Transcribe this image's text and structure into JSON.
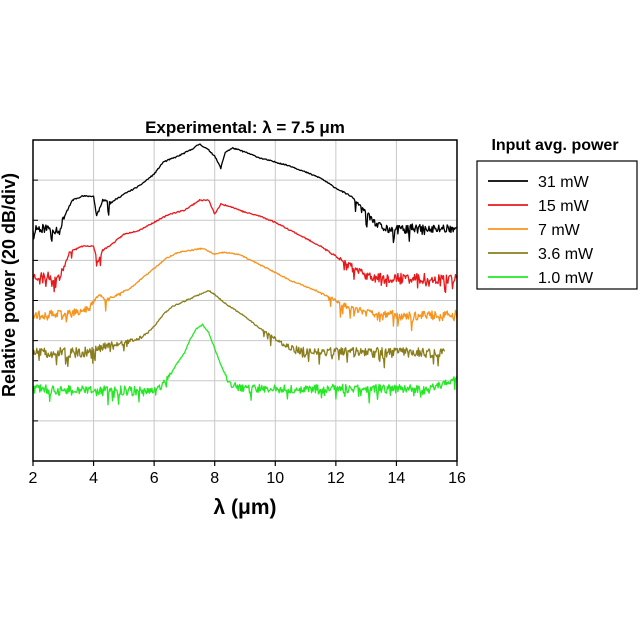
{
  "chart_data": {
    "type": "line",
    "title": "Experimental:  λ = 7.5 μm",
    "xlabel": "λ (μm)",
    "ylabel": "Relative power (20 dB/div)",
    "xlim": [
      2,
      16
    ],
    "xticks": [
      "2",
      "4",
      "6",
      "8",
      "10",
      "12",
      "14",
      "16"
    ],
    "ydivisions": 8,
    "grid": true,
    "legend": {
      "title": "Input avg. power",
      "placement": "right"
    },
    "series": [
      {
        "name": "31 mW",
        "color": "#000000",
        "x": [
          2.0,
          2.5,
          2.9,
          3.0,
          3.3,
          3.6,
          4.0,
          4.1,
          4.2,
          4.3,
          4.6,
          5.0,
          5.5,
          6.0,
          6.3,
          6.8,
          7.2,
          7.5,
          7.8,
          8.0,
          8.2,
          8.35,
          8.6,
          9.0,
          9.5,
          10.0,
          10.5,
          11.0,
          11.5,
          12.0,
          12.5,
          13.0,
          13.3,
          13.6,
          14.0,
          14.5,
          15.0,
          15.5,
          16.0
        ],
        "y": [
          -2.2,
          -2.2,
          -2.25,
          -1.95,
          -1.5,
          -1.4,
          -1.4,
          -1.9,
          -1.7,
          -1.5,
          -1.55,
          -1.35,
          -1.15,
          -0.85,
          -0.55,
          -0.4,
          -0.25,
          -0.1,
          -0.25,
          -0.4,
          -0.7,
          -0.3,
          -0.2,
          -0.3,
          -0.45,
          -0.55,
          -0.65,
          -0.8,
          -0.95,
          -1.2,
          -1.4,
          -1.8,
          -2.1,
          -2.2,
          -2.25,
          -2.2,
          -2.25,
          -2.2,
          -2.2
        ]
      },
      {
        "name": "15 mW",
        "color": "#e8181b",
        "x": [
          2.0,
          2.5,
          2.9,
          3.2,
          3.6,
          4.0,
          4.15,
          4.3,
          4.6,
          5.0,
          5.5,
          6.0,
          6.5,
          7.0,
          7.5,
          7.8,
          8.0,
          8.2,
          8.5,
          9.0,
          9.5,
          10.0,
          10.5,
          11.0,
          11.5,
          12.0,
          12.5,
          13.0,
          13.5,
          14.0,
          14.5,
          15.0,
          15.5,
          16.0
        ],
        "y": [
          -3.4,
          -3.4,
          -3.4,
          -2.8,
          -2.65,
          -2.65,
          -3.05,
          -2.75,
          -2.6,
          -2.35,
          -2.25,
          -2.05,
          -1.85,
          -1.75,
          -1.5,
          -1.5,
          -1.85,
          -1.6,
          -1.65,
          -1.8,
          -1.9,
          -2.05,
          -2.25,
          -2.45,
          -2.65,
          -2.9,
          -3.1,
          -3.4,
          -3.45,
          -3.45,
          -3.45,
          -3.45,
          -3.45,
          -3.45
        ]
      },
      {
        "name": "7 mW",
        "color": "#f7941d",
        "x": [
          2.0,
          2.5,
          3.0,
          3.5,
          3.8,
          4.2,
          4.4,
          4.8,
          5.2,
          5.6,
          6.0,
          6.4,
          6.8,
          7.2,
          7.6,
          8.0,
          8.3,
          8.8,
          9.2,
          9.6,
          10.0,
          10.5,
          11.0,
          11.5,
          12.0,
          12.5,
          13.0,
          13.5,
          14.0,
          14.5,
          15.0,
          15.5,
          16.0
        ],
        "y": [
          -4.35,
          -4.35,
          -4.35,
          -4.3,
          -4.2,
          -3.85,
          -4.0,
          -3.85,
          -3.7,
          -3.45,
          -3.2,
          -2.95,
          -2.8,
          -2.75,
          -2.7,
          -2.85,
          -2.8,
          -2.85,
          -3.0,
          -3.15,
          -3.3,
          -3.5,
          -3.65,
          -3.8,
          -4.0,
          -4.2,
          -4.3,
          -4.4,
          -4.35,
          -4.4,
          -4.35,
          -4.4,
          -4.35
        ]
      },
      {
        "name": "3.6 mW",
        "color": "#8a7d1c",
        "x": [
          2.0,
          2.5,
          3.0,
          3.5,
          4.0,
          4.5,
          5.0,
          5.5,
          5.8,
          6.1,
          6.3,
          6.6,
          6.9,
          7.2,
          7.5,
          7.8,
          8.0,
          8.3,
          8.6,
          9.0,
          9.5,
          10.0,
          10.5,
          11.0,
          11.5,
          12.0,
          12.5,
          13.0,
          13.5,
          14.0,
          14.5,
          15.0,
          15.6
        ],
        "y": [
          -5.3,
          -5.3,
          -5.3,
          -5.3,
          -5.25,
          -5.1,
          -5.05,
          -4.95,
          -4.8,
          -4.55,
          -4.35,
          -4.15,
          -4.05,
          -3.95,
          -3.85,
          -3.75,
          -3.85,
          -4.05,
          -4.2,
          -4.4,
          -4.7,
          -4.95,
          -5.2,
          -5.3,
          -5.3,
          -5.3,
          -5.3,
          -5.3,
          -5.3,
          -5.3,
          -5.3,
          -5.3,
          -5.3
        ]
      },
      {
        "name": "1.0 mW",
        "color": "#25e825",
        "x": [
          2.0,
          3.0,
          4.0,
          5.0,
          5.8,
          6.2,
          6.6,
          7.0,
          7.2,
          7.4,
          7.6,
          7.8,
          8.0,
          8.2,
          8.5,
          9.0,
          10.0,
          11.0,
          12.0,
          13.0,
          14.0,
          15.0,
          15.7,
          16.0
        ],
        "y": [
          -6.2,
          -6.25,
          -6.25,
          -6.25,
          -6.25,
          -6.2,
          -5.75,
          -5.3,
          -4.95,
          -4.7,
          -4.6,
          -4.8,
          -5.2,
          -5.6,
          -6.1,
          -6.2,
          -6.2,
          -6.2,
          -6.2,
          -6.2,
          -6.2,
          -6.2,
          -6.05,
          -5.9
        ]
      }
    ]
  }
}
